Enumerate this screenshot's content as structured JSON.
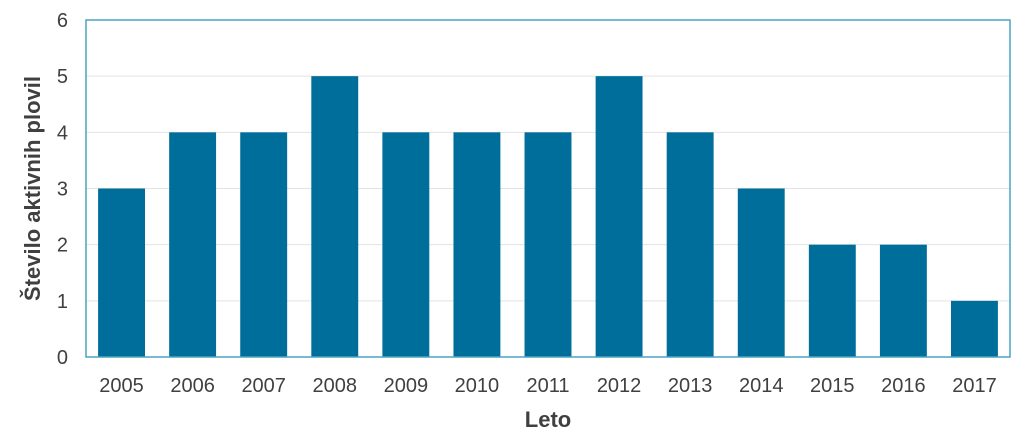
{
  "chart_data": {
    "type": "bar",
    "categories": [
      "2005",
      "2006",
      "2007",
      "2008",
      "2009",
      "2010",
      "2011",
      "2012",
      "2013",
      "2014",
      "2015",
      "2016",
      "2017"
    ],
    "values": [
      3,
      4,
      4,
      5,
      4,
      4,
      4,
      5,
      4,
      3,
      2,
      2,
      1
    ],
    "xlabel": "Leto",
    "ylabel": "Število aktivnih plovil",
    "ylim": [
      0,
      6
    ],
    "yticks": [
      0,
      1,
      2,
      3,
      4,
      5,
      6
    ],
    "grid": true,
    "legend": "none",
    "colors": {
      "bar": "#006E9A",
      "grid": "#E3E3E3",
      "frame": "#4BA3C3",
      "text": "#404040"
    }
  }
}
